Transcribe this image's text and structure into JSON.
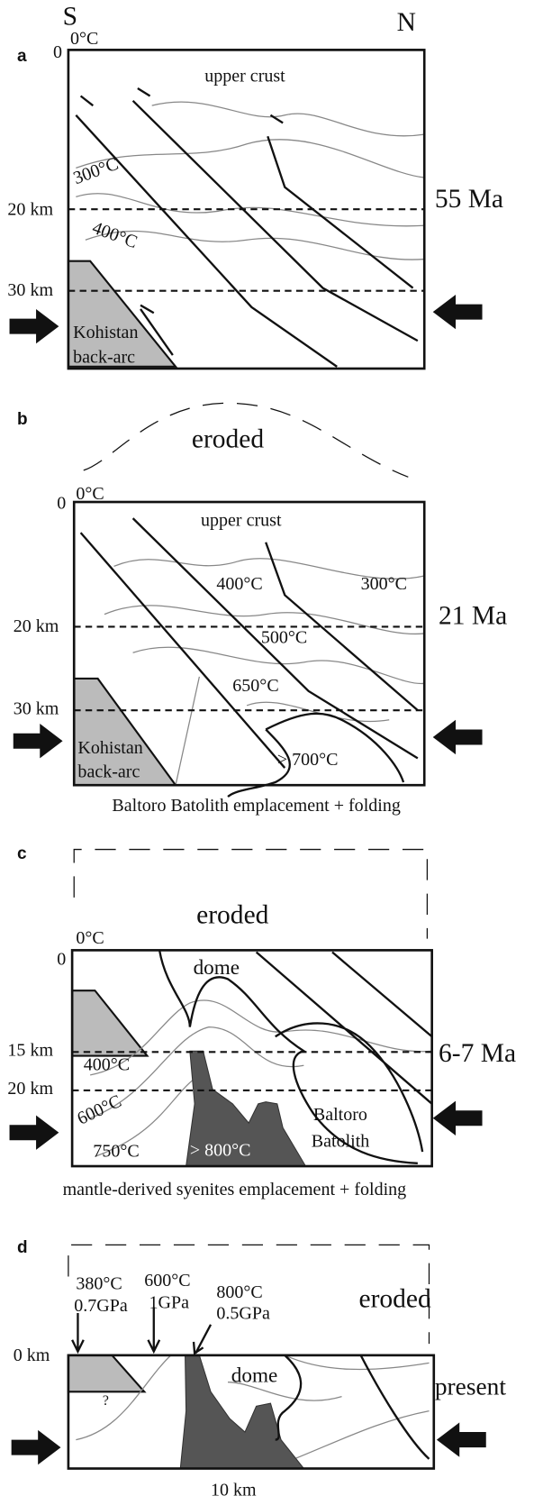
{
  "header": {
    "south": "S",
    "north": "N"
  },
  "panels": [
    {
      "label": "a",
      "depth_top": "0",
      "surface_temp": "0°C",
      "layer": "upper crust",
      "isotherms": [
        "300°C",
        "400°C"
      ],
      "depths": [
        "20 km",
        "30 km"
      ],
      "age": "55 Ma",
      "block": [
        "Kohistan",
        "back-arc"
      ]
    },
    {
      "label": "b",
      "eroded": "eroded",
      "depth_top": "0",
      "surface_temp": "0°C",
      "layer": "upper crust",
      "isotherms": [
        "400°C",
        "300°C",
        "500°C",
        "650°C",
        "> 700°C"
      ],
      "depths": [
        "20 km",
        "30 km"
      ],
      "age": "21 Ma",
      "block": [
        "Kohistan",
        "back-arc"
      ],
      "caption": "Baltoro Batolith emplacement + folding"
    },
    {
      "label": "c",
      "eroded": "eroded",
      "depth_top": "0",
      "surface_temp": "0°C",
      "dome": "dome",
      "isotherms": [
        "400°C",
        "600°C",
        "750°C",
        "> 800°C"
      ],
      "depths": [
        "15 km",
        "20 km"
      ],
      "age": "6-7 Ma",
      "batholith": [
        "Baltoro",
        "Batolith"
      ],
      "caption": "mantle-derived syenites emplacement + folding"
    },
    {
      "label": "d",
      "samples": [
        {
          "temp": "380°C",
          "pressure": "0.7GPa"
        },
        {
          "temp": "600°C",
          "pressure": "1GPa"
        },
        {
          "temp": "800°C",
          "pressure": "0.5GPa"
        }
      ],
      "eroded": "eroded",
      "depth_top": "0 km",
      "dome": "dome",
      "unknown": "?",
      "age": "present",
      "scale": "10 km"
    }
  ]
}
